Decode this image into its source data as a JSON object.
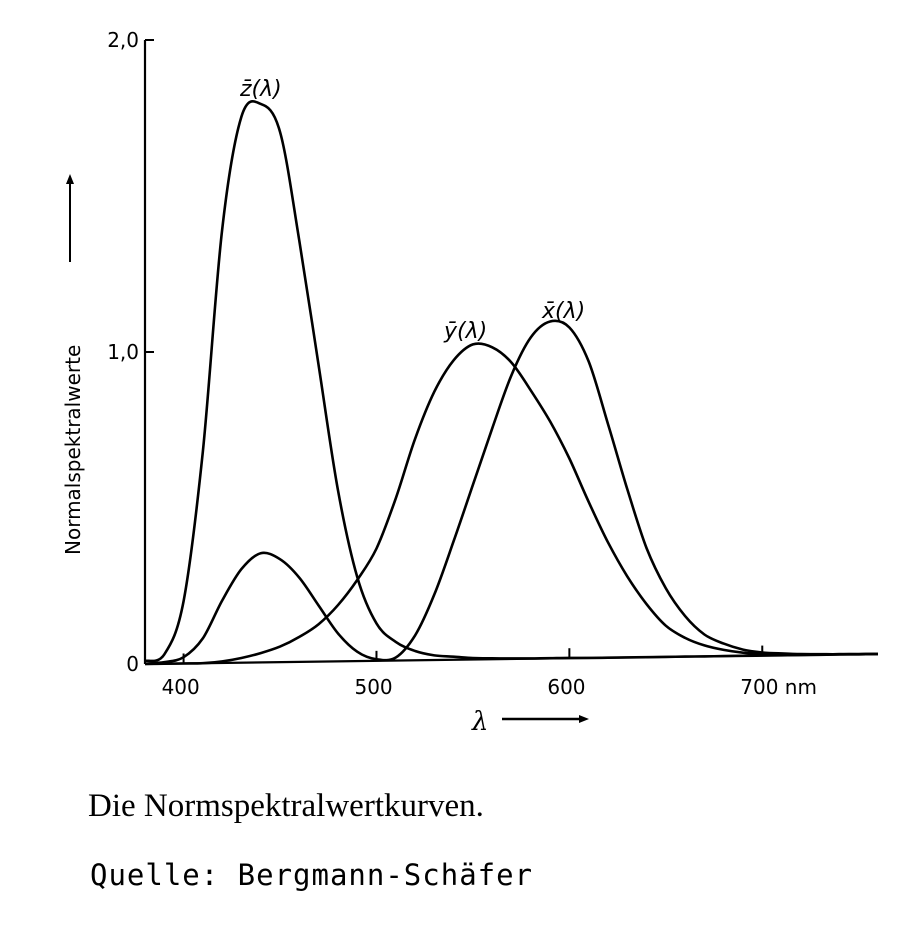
{
  "chart_data": {
    "type": "line",
    "title": "",
    "ylabel": "Normalspektralwerte",
    "xlabel": "λ",
    "x_unit": "nm",
    "xlim": [
      380,
      760
    ],
    "ylim": [
      0,
      2.0
    ],
    "x_ticks": [
      {
        "value": 400,
        "label": "400"
      },
      {
        "value": 500,
        "label": "500"
      },
      {
        "value": 600,
        "label": "600"
      },
      {
        "value": 700,
        "label": "700"
      }
    ],
    "y_ticks": [
      {
        "value": 0,
        "label": "0"
      },
      {
        "value": 1.0,
        "label": "1,0"
      },
      {
        "value": 2.0,
        "label": "2,0"
      }
    ],
    "x": [
      380,
      390,
      400,
      410,
      420,
      430,
      440,
      450,
      460,
      470,
      480,
      490,
      500,
      510,
      520,
      530,
      540,
      550,
      560,
      570,
      580,
      590,
      600,
      610,
      620,
      630,
      640,
      650,
      660,
      670,
      680,
      690,
      700,
      710,
      720,
      730,
      740,
      750,
      760
    ],
    "series": [
      {
        "name": "z̄(λ)",
        "values": [
          0.01,
          0.03,
          0.2,
          0.68,
          1.39,
          1.75,
          1.79,
          1.7,
          1.35,
          0.95,
          0.55,
          0.27,
          0.12,
          0.06,
          0.03,
          0.015,
          0.01,
          0.005,
          0.003,
          0.002,
          0.001,
          0.001,
          0.001,
          0,
          0,
          0,
          0,
          0,
          0,
          0,
          0,
          0,
          0,
          0,
          0,
          0,
          0,
          0,
          0
        ]
      },
      {
        "name": "ȳ(λ)",
        "values": [
          0,
          0,
          0,
          0,
          0.005,
          0.015,
          0.03,
          0.05,
          0.08,
          0.12,
          0.18,
          0.26,
          0.36,
          0.52,
          0.71,
          0.86,
          0.96,
          1.01,
          1.0,
          0.95,
          0.86,
          0.76,
          0.64,
          0.5,
          0.37,
          0.26,
          0.17,
          0.1,
          0.06,
          0.035,
          0.02,
          0.01,
          0.005,
          0.003,
          0.002,
          0.001,
          0.001,
          0,
          0
        ]
      },
      {
        "name": "x̄(λ)",
        "values": [
          0.001,
          0.005,
          0.02,
          0.08,
          0.2,
          0.3,
          0.35,
          0.33,
          0.27,
          0.18,
          0.09,
          0.03,
          0.005,
          0.01,
          0.08,
          0.21,
          0.38,
          0.56,
          0.74,
          0.91,
          1.03,
          1.08,
          1.06,
          0.95,
          0.75,
          0.54,
          0.35,
          0.22,
          0.13,
          0.07,
          0.04,
          0.02,
          0.01,
          0.006,
          0.003,
          0.002,
          0.001,
          0.001,
          0
        ]
      }
    ],
    "legend": "inline labels near peaks",
    "grid": false
  },
  "caption": "Die Normspektralwertkurven.",
  "source": "Quelle: Bergmann-Schäfer"
}
